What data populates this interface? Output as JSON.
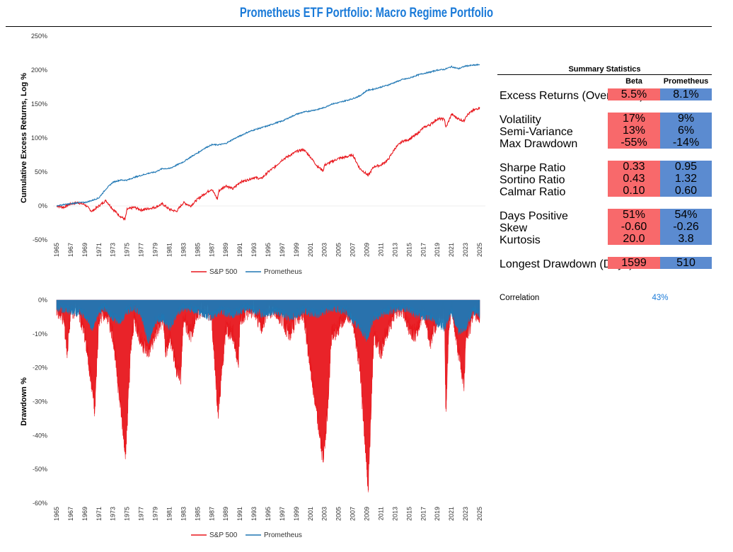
{
  "title": "Prometheus ETF Portfolio: Macro Regime Portfolio",
  "colors": {
    "sp500": "#e8171d",
    "prometheus": "#1f77b4",
    "beta_cell": "#f8696b",
    "prometheus_cell": "#5b8bd0",
    "accent": "#1a7ad8"
  },
  "chart_data": [
    {
      "type": "line",
      "ylabel": "Cumulative Excess Returns, Log %",
      "ylim": [
        -50,
        250
      ],
      "yticks": [
        "-50%",
        "0%",
        "50%",
        "100%",
        "150%",
        "200%",
        "250%"
      ],
      "yticks_values": [
        -50,
        0,
        50,
        100,
        150,
        200,
        250
      ],
      "xlim": [
        1964.5,
        2025.8
      ],
      "xticks": [
        "1965",
        "1967",
        "1969",
        "1971",
        "1973",
        "1975",
        "1977",
        "1979",
        "1981",
        "1983",
        "1985",
        "1987",
        "1989",
        "1991",
        "1993",
        "1995",
        "1997",
        "1999",
        "2001",
        "2003",
        "2005",
        "2007",
        "2009",
        "2011",
        "2013",
        "2015",
        "2017",
        "2019",
        "2021",
        "2023",
        "2025"
      ],
      "legend": [
        "S&P 500",
        "Prometheus"
      ],
      "legend_position": "bottom",
      "series": [
        {
          "name": "S&P 500",
          "x": [
            1965,
            1966,
            1967,
            1968,
            1969,
            1970,
            1971,
            1972,
            1973,
            1974,
            1974.7,
            1975,
            1976,
            1977,
            1978,
            1979,
            1980,
            1981,
            1982,
            1983,
            1984,
            1985,
            1986,
            1987,
            1987.8,
            1988,
            1989,
            1990,
            1991,
            1992,
            1993,
            1994,
            1995,
            1996,
            1997,
            1998,
            1999,
            2000,
            2000.5,
            2001,
            2002,
            2002.8,
            2003,
            2004,
            2005,
            2006,
            2007,
            2008,
            2009.2,
            2010,
            2011,
            2012,
            2013,
            2014,
            2015,
            2016,
            2017,
            2018,
            2019,
            2020,
            2020.2,
            2021,
            2022,
            2022.8,
            2023,
            2024,
            2025
          ],
          "y": [
            0,
            -2,
            3,
            5,
            2,
            -8,
            0,
            8,
            -5,
            -15,
            -20,
            -5,
            -2,
            -6,
            -4,
            -2,
            3,
            -5,
            -8,
            5,
            0,
            10,
            18,
            25,
            10,
            22,
            30,
            25,
            35,
            38,
            42,
            40,
            50,
            58,
            68,
            74,
            80,
            83,
            78,
            72,
            58,
            52,
            60,
            65,
            70,
            72,
            75,
            55,
            45,
            58,
            60,
            68,
            85,
            95,
            98,
            105,
            115,
            120,
            128,
            128,
            115,
            135,
            128,
            125,
            132,
            140,
            145
          ]
        },
        {
          "name": "Prometheus",
          "x": [
            1965,
            1966,
            1967,
            1968,
            1969,
            1970,
            1971,
            1972,
            1973,
            1974,
            1975,
            1976,
            1977,
            1978,
            1979,
            1980,
            1981,
            1982,
            1983,
            1984,
            1985,
            1986,
            1987,
            1988,
            1989,
            1990,
            1991,
            1992,
            1993,
            1994,
            1995,
            1996,
            1997,
            1998,
            1999,
            2000,
            2001,
            2002,
            2003,
            2004,
            2005,
            2006,
            2007,
            2008,
            2009,
            2010,
            2011,
            2012,
            2013,
            2014,
            2015,
            2016,
            2017,
            2018,
            2019,
            2020,
            2021,
            2022,
            2023,
            2024,
            2025
          ],
          "y": [
            0,
            2,
            3,
            5,
            5,
            8,
            12,
            25,
            35,
            38,
            38,
            42,
            45,
            48,
            50,
            55,
            55,
            60,
            65,
            72,
            78,
            85,
            90,
            90,
            92,
            98,
            103,
            108,
            112,
            115,
            118,
            122,
            125,
            130,
            135,
            138,
            140,
            142,
            145,
            150,
            152,
            155,
            158,
            162,
            170,
            172,
            175,
            178,
            182,
            186,
            188,
            192,
            195,
            197,
            200,
            201,
            205,
            202,
            206,
            207,
            208
          ]
        }
      ]
    },
    {
      "type": "area",
      "ylabel": "Drawdown %",
      "ylim": [
        -60,
        0
      ],
      "yticks": [
        "-60%",
        "-50%",
        "-40%",
        "-30%",
        "-20%",
        "-10%",
        "0%"
      ],
      "yticks_values": [
        -60,
        -50,
        -40,
        -30,
        -20,
        -10,
        0
      ],
      "xlim": [
        1964.5,
        2025.8
      ],
      "xticks": [
        "1965",
        "1967",
        "1969",
        "1971",
        "1973",
        "1975",
        "1977",
        "1979",
        "1981",
        "1983",
        "1985",
        "1987",
        "1989",
        "1991",
        "1993",
        "1995",
        "1997",
        "1999",
        "2001",
        "2003",
        "2005",
        "2007",
        "2009",
        "2011",
        "2013",
        "2015",
        "2017",
        "2019",
        "2021",
        "2023",
        "2025"
      ],
      "legend": [
        "S&P 500",
        "Prometheus"
      ],
      "legend_position": "bottom",
      "series": [
        {
          "name": "S&P 500",
          "x": [
            1965,
            1966,
            1966.5,
            1967,
            1968,
            1969,
            1970,
            1970.4,
            1971,
            1972,
            1973,
            1974,
            1974.8,
            1975.5,
            1976,
            1977,
            1978,
            1979,
            1980,
            1980.5,
            1981,
            1982,
            1982.6,
            1983,
            1984,
            1985,
            1986,
            1987,
            1987.9,
            1988.5,
            1989,
            1990,
            1990.8,
            1991,
            1992,
            1993,
            1994,
            1995,
            1996,
            1997,
            1998,
            1999,
            2000,
            2001,
            2002,
            2002.8,
            2003.5,
            2004,
            2005,
            2006,
            2007,
            2008,
            2009.2,
            2009.8,
            2010,
            2011,
            2012,
            2013,
            2014,
            2015,
            2016,
            2017,
            2018,
            2019,
            2020,
            2020.2,
            2020.6,
            2021,
            2022,
            2022.8,
            2023,
            2023.6,
            2024,
            2025
          ],
          "y": [
            -2,
            -5,
            -15,
            -3,
            -2,
            -10,
            -25,
            -33,
            -5,
            -3,
            -10,
            -30,
            -45,
            -15,
            -5,
            -12,
            -15,
            -10,
            -5,
            -15,
            -10,
            -20,
            -22,
            -5,
            -10,
            -3,
            -2,
            -5,
            -33,
            -20,
            -8,
            -10,
            -18,
            -5,
            -3,
            -2,
            -8,
            -2,
            -3,
            -5,
            -10,
            -5,
            -3,
            -20,
            -35,
            -47,
            -30,
            -10,
            -8,
            -3,
            -5,
            -20,
            -55,
            -20,
            -10,
            -15,
            -8,
            -3,
            -2,
            -8,
            -10,
            -2,
            -12,
            -5,
            -3,
            -34,
            -8,
            -2,
            -15,
            -25,
            -10,
            -8,
            -3,
            -5
          ]
        },
        {
          "name": "Prometheus",
          "x": [
            1965,
            1967,
            1969,
            1970,
            1971,
            1972,
            1973,
            1974,
            1975,
            1976,
            1977,
            1978,
            1979,
            1980,
            1981,
            1982,
            1983,
            1985,
            1987,
            1988,
            1990,
            1992,
            1994,
            1996,
            1998,
            2000,
            2002,
            2004,
            2006,
            2008,
            2009,
            2010,
            2012,
            2014,
            2016,
            2018,
            2020,
            2021,
            2022,
            2023,
            2024,
            2025
          ],
          "y": [
            -2,
            -3,
            -4,
            -8,
            -3,
            -2,
            -5,
            -6,
            -3,
            -2,
            -4,
            -12,
            -6,
            -5,
            -8,
            -4,
            -2,
            -3,
            -5,
            -3,
            -4,
            -2,
            -4,
            -3,
            -5,
            -3,
            -4,
            -2,
            -3,
            -8,
            -11,
            -5,
            -3,
            -2,
            -4,
            -5,
            -8,
            -3,
            -9,
            -8,
            -3,
            -4
          ]
        }
      ]
    }
  ],
  "stats": {
    "title": "Summary Statistics",
    "col_beta": "Beta",
    "col_prometheus": "Prometheus",
    "rows": [
      {
        "label": "Excess Returns (Over Cash)",
        "beta": "5.5%",
        "prometheus": "8.1%"
      },
      {
        "label": "Volatility",
        "beta": "17%",
        "prometheus": "9%"
      },
      {
        "label": "Semi-Variance",
        "beta": "13%",
        "prometheus": "6%"
      },
      {
        "label": "Max Drawdown",
        "beta": "-55%",
        "prometheus": "-14%"
      },
      {
        "label": "Sharpe Ratio",
        "beta": "0.33",
        "prometheus": "0.95"
      },
      {
        "label": "Sortino Ratio",
        "beta": "0.43",
        "prometheus": "1.32"
      },
      {
        "label": "Calmar Ratio",
        "beta": "0.10",
        "prometheus": "0.60"
      },
      {
        "label": "Days Positive",
        "beta": "51%",
        "prometheus": "54%"
      },
      {
        "label": "Skew",
        "beta": "-0.60",
        "prometheus": "-0.26"
      },
      {
        "label": "Kurtosis",
        "beta": "20.0",
        "prometheus": "3.8"
      },
      {
        "label": "Longest Drawdown (Days)",
        "beta": "1599",
        "prometheus": "510"
      }
    ],
    "correlation_label": "Correlation",
    "correlation_value": "43%"
  }
}
